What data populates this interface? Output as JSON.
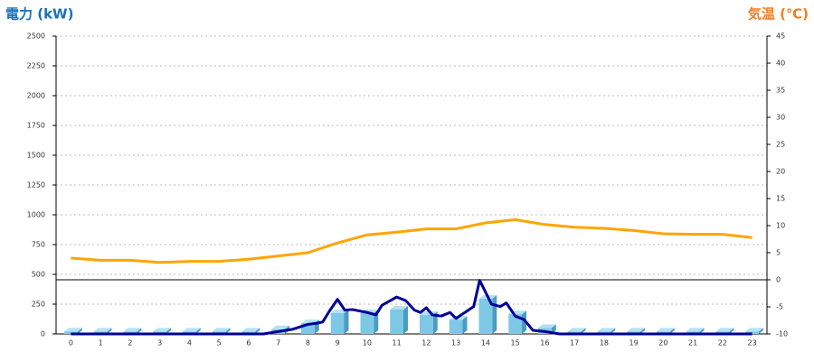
{
  "chart_data": {
    "type": "combo",
    "title_left": "電力 (kW)",
    "title_right": "気温 (℃)",
    "categories": [
      "0",
      "1",
      "2",
      "3",
      "4",
      "5",
      "6",
      "7",
      "8",
      "9",
      "10",
      "11",
      "12",
      "13",
      "14",
      "15",
      "16",
      "17",
      "18",
      "19",
      "20",
      "21",
      "22",
      "23"
    ],
    "xlim": [
      -0.5,
      23.5
    ],
    "ylim": [
      0,
      2500
    ],
    "yticks": [
      0,
      250,
      500,
      750,
      1000,
      1250,
      1500,
      1750,
      2000,
      2250,
      2500
    ],
    "y2lim": [
      -10,
      45
    ],
    "y2ticks": [
      -10,
      -5,
      0,
      5,
      10,
      15,
      20,
      25,
      30,
      35,
      40,
      45
    ],
    "grid": true,
    "series": [
      {
        "type": "bar",
        "color": "#7ec8e6",
        "values": [
          20,
          20,
          20,
          20,
          20,
          20,
          20,
          40,
          90,
          175,
          175,
          205,
          160,
          120,
          295,
          165,
          50,
          20,
          20,
          20,
          20,
          20,
          20,
          20
        ]
      },
      {
        "type": "line",
        "color": "#000099",
        "x": [
          0,
          6.5,
          7,
          7.5,
          8,
          8.3,
          8.5,
          8.75,
          9,
          9.25,
          9.5,
          10,
          10.3,
          10.5,
          11,
          11.3,
          11.6,
          11.8,
          12,
          12.2,
          12.5,
          12.8,
          13,
          13.3,
          13.6,
          13.8,
          14,
          14.2,
          14.5,
          14.7,
          15,
          15.3,
          15.6,
          16,
          16.5,
          23
        ],
        "values": [
          0,
          0,
          20,
          40,
          80,
          90,
          100,
          200,
          290,
          200,
          205,
          180,
          160,
          240,
          310,
          280,
          200,
          180,
          220,
          160,
          150,
          180,
          130,
          180,
          230,
          450,
          350,
          250,
          230,
          260,
          150,
          120,
          30,
          20,
          0,
          0
        ]
      },
      {
        "type": "line",
        "axis": "y2",
        "color": "#ffa500",
        "values": [
          4,
          3.6,
          3.6,
          3.2,
          3.4,
          3.4,
          3.8,
          4.4,
          5,
          6.8,
          8.3,
          8.8,
          9.4,
          9.4,
          10.5,
          11.1,
          10.2,
          9.7,
          9.5,
          9.1,
          8.5,
          8.4,
          8.4,
          7.8
        ]
      }
    ]
  }
}
